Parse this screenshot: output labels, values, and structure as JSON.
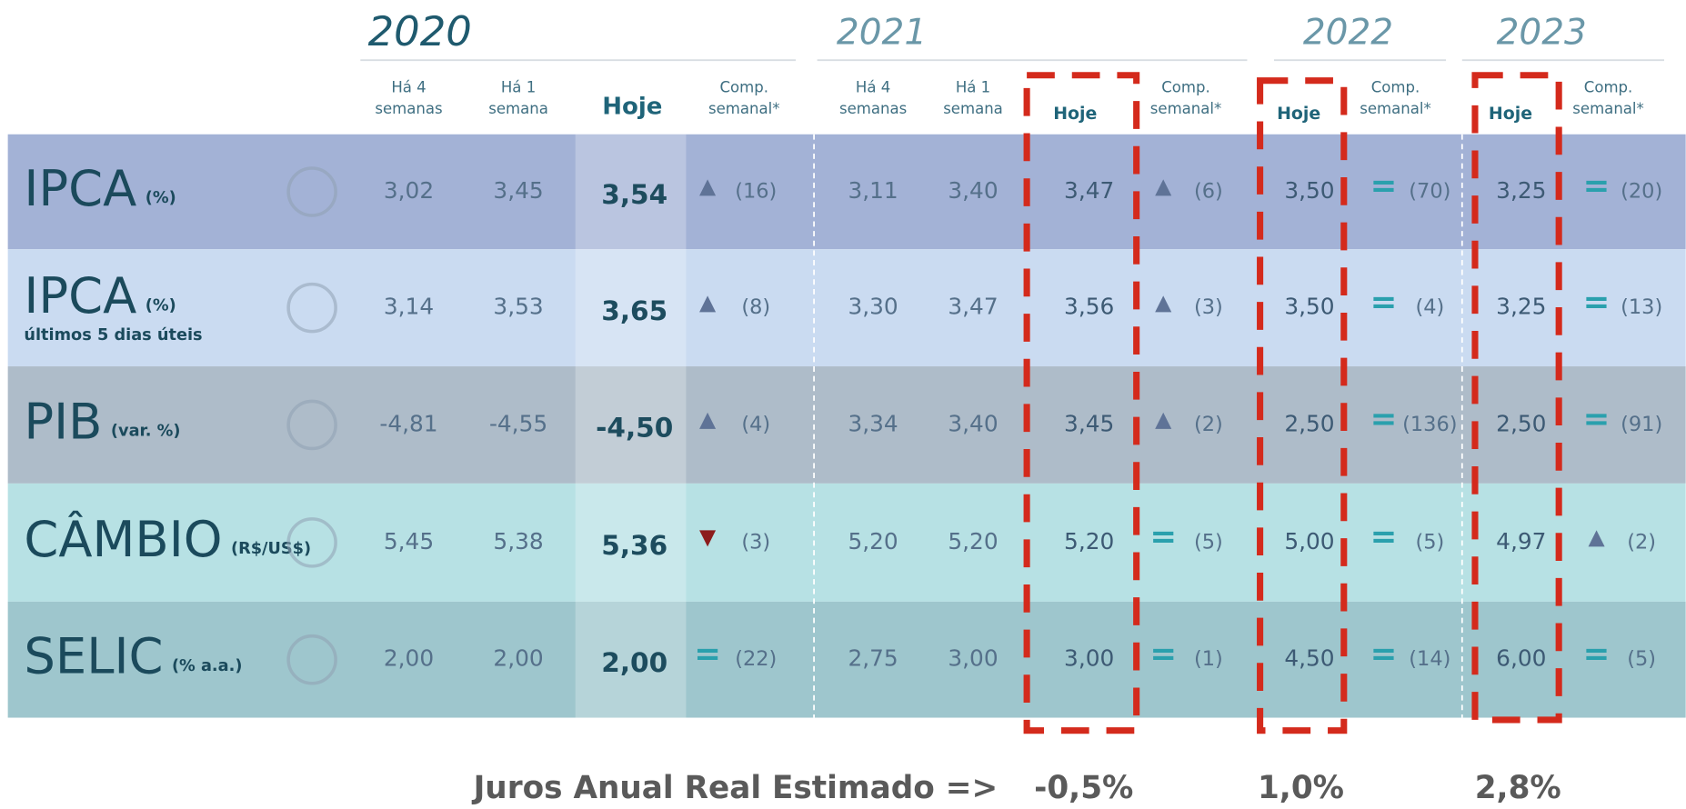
{
  "years": [
    "2020",
    "2021",
    "2022",
    "2023"
  ],
  "column_headers": {
    "weeks_4": [
      "Há 4",
      "semanas"
    ],
    "weeks_1": [
      "Há 1",
      "semana"
    ],
    "today": "Hoje",
    "weekly": [
      "Comp.",
      "semanal*"
    ]
  },
  "rows": [
    {
      "name": "IPCA",
      "unit": "(%)",
      "cells": [
        "3,02",
        "3,45",
        "3,54",
        "▲",
        "(16)",
        "3,11",
        "3,40",
        "3,47",
        "▲",
        "(6)",
        "3,50",
        "=",
        "(70)",
        "3,25",
        "=",
        "(20)"
      ]
    },
    {
      "name": "IPCA",
      "unit": "(%)",
      "note": "últimos 5 dias úteis",
      "cells": [
        "3,14",
        "3,53",
        "3,65",
        "▲",
        "(8)",
        "3,30",
        "3,47",
        "3,56",
        "▲",
        "(3)",
        "3,50",
        "=",
        "(4)",
        "3,25",
        "=",
        "(13)"
      ]
    },
    {
      "name": "PIB",
      "unit": "(var. %)",
      "cells": [
        "-4,81",
        "-4,55",
        "-4,50",
        "▲",
        "(4)",
        "3,34",
        "3,40",
        "3,45",
        "▲",
        "(2)",
        "2,50",
        "=",
        "(136)",
        "2,50",
        "=",
        "(91)"
      ]
    },
    {
      "name": "CÂMBIO",
      "unit": "(R$/US$)",
      "cells": [
        "5,45",
        "5,38",
        "5,36",
        "▼",
        "(3)",
        "5,20",
        "5,20",
        "5,20",
        "=",
        "(5)",
        "5,00",
        "=",
        "(5)",
        "4,97",
        "▲",
        "(2)"
      ]
    },
    {
      "name": "SELIC",
      "unit": "(% a.a.)",
      "cells": [
        "2,00",
        "2,00",
        "2,00",
        "=",
        "(22)",
        "2,75",
        "3,00",
        "3,00",
        "=",
        "(1)",
        "4,50",
        "=",
        "(14)",
        "6,00",
        "=",
        "(5)"
      ]
    }
  ],
  "footer": {
    "label": "Juros Anual Real Estimado =>",
    "values": [
      "-0,5%",
      "1,0%",
      "2,8%"
    ]
  }
}
